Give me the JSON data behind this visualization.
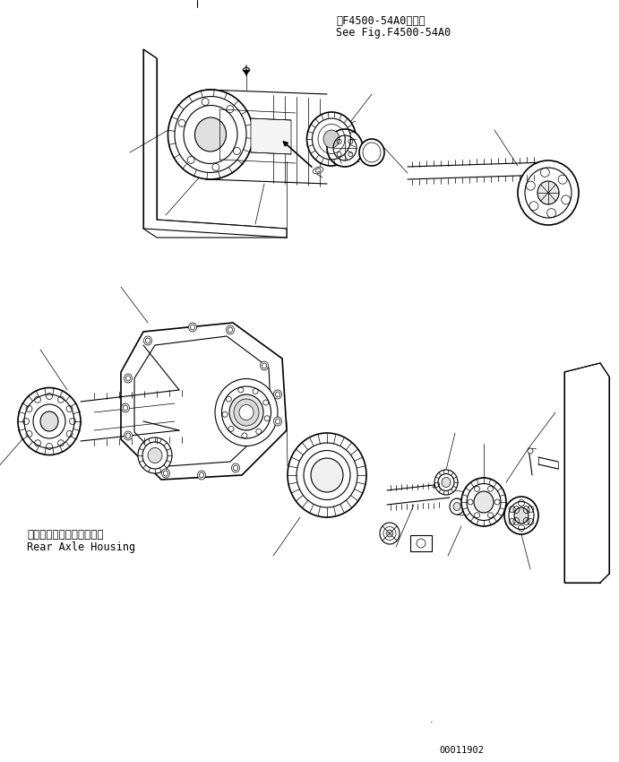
{
  "background_color": "#ffffff",
  "line_color": "#000000",
  "figure_id": "00011902",
  "text_top_jp": "第F4500-54A0図参照",
  "text_top_en": "See Fig.F4500-54A0",
  "label_jp": "リヤーアクスルハウジング",
  "label_en": "Rear Axle Housing",
  "font_size_text": 8.5,
  "font_size_id": 7.5
}
